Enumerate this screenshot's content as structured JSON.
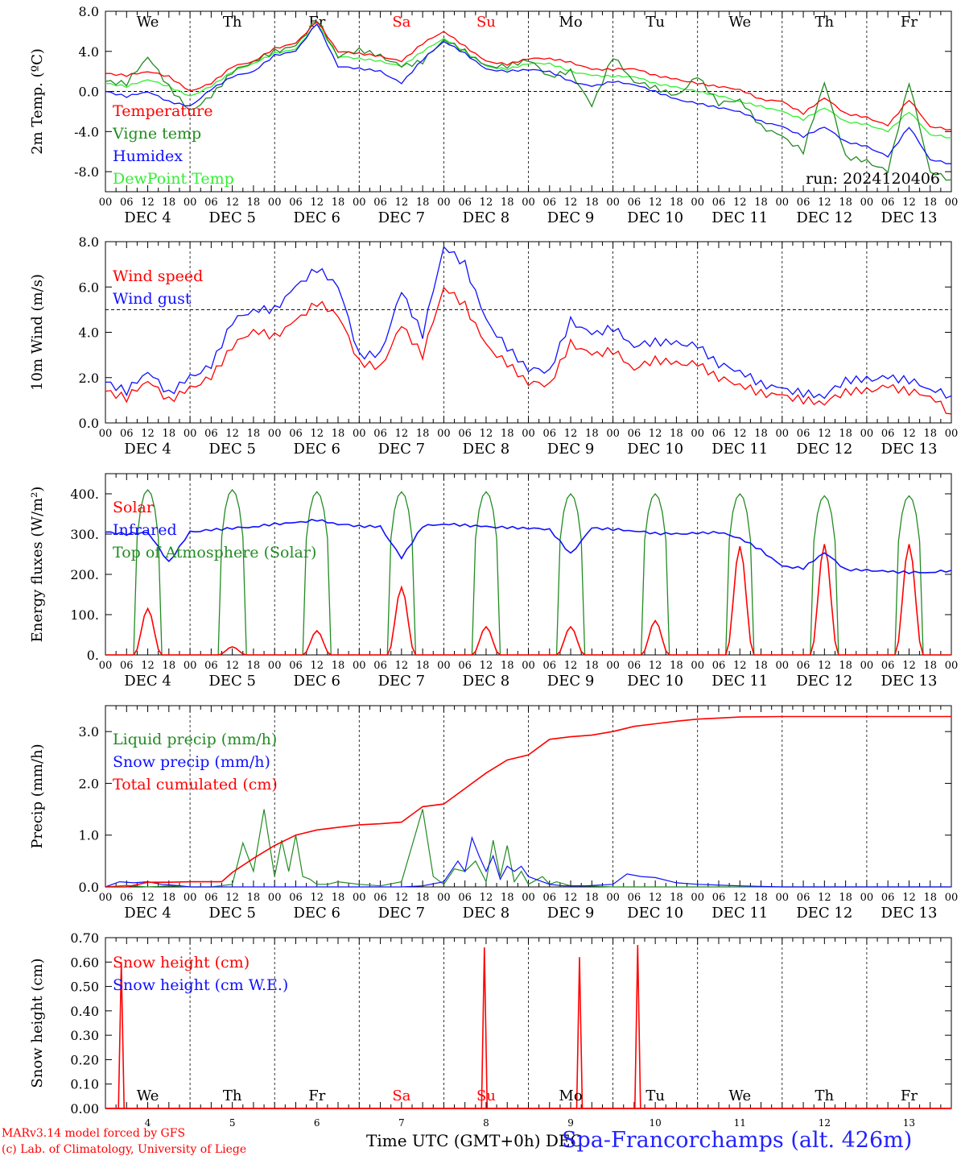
{
  "title": "Spa-Francorchamps (alt. 426m)",
  "run": "run: 2024120406",
  "credits": [
    "MARv3.14 model forced by GFS",
    "(c) Lab. of Climatology, University of Liege"
  ],
  "xaxis_title": "Time UTC (GMT+0h) DEC",
  "colors": {
    "red": "#ff0000",
    "green": "#228b22",
    "blue": "#1010ff",
    "lightgreen": "#33ee33",
    "weekend": "#ff0000"
  },
  "days": [
    "We",
    "Th",
    "Fr",
    "Sa",
    "Su",
    "Mo",
    "Tu",
    "We",
    "Th",
    "Fr"
  ],
  "weekend_days": [
    "Sa",
    "Su"
  ],
  "dates": [
    "DEC  4",
    "DEC  5",
    "DEC  6",
    "DEC  7",
    "DEC  8",
    "DEC  9",
    "DEC 10",
    "DEC 11",
    "DEC 12",
    "DEC 13"
  ],
  "day_numbers": [
    "4",
    "5",
    "6",
    "7",
    "8",
    "9",
    "10",
    "11",
    "12",
    "13"
  ],
  "hour_ticks": [
    "00",
    "06",
    "12",
    "18"
  ],
  "chart_data": [
    {
      "type": "line",
      "ylabel": "2m Temp. (ºC)",
      "ylim": [
        -10,
        8
      ],
      "yticks": [
        8.0,
        4.0,
        0.0,
        -4.0,
        -8.0
      ],
      "ytick_labels": [
        "8.0",
        "4.0",
        "0.0",
        "-4.0",
        "-8.0"
      ],
      "ref_line": 0,
      "x_hours": [
        0,
        6,
        12,
        18,
        24,
        30,
        36,
        42,
        48,
        54,
        60,
        66,
        72,
        78,
        84,
        90,
        96,
        102,
        108,
        114,
        120,
        126,
        132,
        138,
        144,
        150,
        156,
        162,
        168,
        174,
        180,
        186,
        192,
        198,
        204,
        210,
        216,
        222,
        228,
        234,
        240
      ],
      "series": [
        {
          "name": "Temperature",
          "color": "#ff0000",
          "values": [
            1.8,
            1.6,
            2.0,
            1.5,
            0.0,
            0.8,
            2.5,
            3.0,
            4.3,
            4.8,
            7.0,
            4.0,
            3.8,
            3.5,
            3.0,
            4.8,
            6.0,
            4.5,
            3.0,
            2.7,
            3.3,
            3.3,
            2.9,
            2.2,
            2.2,
            2.3,
            1.6,
            1.2,
            0.8,
            0.5,
            0.2,
            -0.8,
            -1.0,
            -2.2,
            -0.6,
            -2.2,
            -2.6,
            -3.4,
            -0.8,
            -3.5,
            -3.8
          ]
        },
        {
          "name": "Vigne temp",
          "color": "#228b22",
          "values": [
            1.0,
            0.8,
            3.5,
            0.5,
            -2.0,
            -0.5,
            2.0,
            3.0,
            4.0,
            4.5,
            7.2,
            3.5,
            4.2,
            3.5,
            2.5,
            3.0,
            5.2,
            4.0,
            2.5,
            2.5,
            3.2,
            1.5,
            2.0,
            -1.5,
            3.5,
            1.0,
            0.4,
            -0.5,
            1.5,
            -1.2,
            -0.8,
            -3.5,
            -4.5,
            -6.0,
            1.0,
            -6.5,
            -7.0,
            -8.0,
            1.0,
            -8.0,
            -8.8
          ]
        },
        {
          "name": "Humidex",
          "color": "#1010ff",
          "values": [
            0.0,
            -0.5,
            0.0,
            -1.0,
            -1.5,
            0.2,
            1.5,
            2.0,
            3.6,
            4.0,
            6.8,
            2.5,
            2.3,
            2.0,
            0.8,
            3.2,
            5.0,
            3.8,
            2.2,
            2.0,
            2.2,
            2.0,
            1.0,
            0.5,
            1.0,
            0.7,
            0.0,
            -0.8,
            -1.2,
            -1.6,
            -2.0,
            -3.0,
            -3.5,
            -4.5,
            -3.5,
            -5.0,
            -5.5,
            -6.5,
            -3.5,
            -6.8,
            -7.2
          ]
        },
        {
          "name": "DewPoint Temp",
          "color": "#33ee33",
          "values": [
            0.8,
            0.5,
            1.2,
            0.5,
            -0.5,
            0.5,
            2.0,
            2.8,
            3.8,
            4.2,
            6.8,
            3.5,
            3.3,
            3.0,
            2.5,
            4.0,
            5.3,
            4.0,
            2.5,
            2.2,
            2.8,
            2.8,
            2.0,
            1.6,
            1.5,
            1.5,
            0.8,
            0.4,
            0.0,
            -0.4,
            -1.0,
            -1.5,
            -2.0,
            -2.8,
            -1.6,
            -3.0,
            -3.3,
            -4.0,
            -2.0,
            -4.3,
            -4.6
          ]
        }
      ]
    },
    {
      "type": "line",
      "ylabel": "10m Wind (m/s)",
      "ylim": [
        0,
        8
      ],
      "yticks": [
        0.0,
        2.0,
        4.0,
        6.0,
        8.0
      ],
      "ytick_labels": [
        "0.0",
        "2.0",
        "4.0",
        "6.0",
        "8.0"
      ],
      "ref_line": 5,
      "x_hours": [
        0,
        6,
        12,
        18,
        24,
        30,
        36,
        42,
        48,
        54,
        60,
        66,
        72,
        78,
        84,
        90,
        96,
        102,
        108,
        114,
        120,
        126,
        132,
        138,
        144,
        150,
        156,
        162,
        168,
        174,
        180,
        186,
        192,
        198,
        204,
        210,
        216,
        222,
        228,
        234,
        240
      ],
      "series": [
        {
          "name": "Wind speed",
          "color": "#ff0000",
          "values": [
            1.4,
            1.1,
            1.9,
            1.0,
            1.5,
            2.0,
            3.4,
            4.1,
            3.8,
            4.5,
            5.3,
            4.8,
            2.7,
            2.4,
            4.3,
            3.0,
            6.0,
            5.2,
            3.4,
            2.6,
            1.8,
            1.7,
            3.5,
            3.0,
            3.2,
            2.4,
            2.8,
            2.6,
            2.6,
            2.0,
            1.7,
            1.3,
            1.2,
            1.0,
            0.9,
            1.4,
            1.4,
            1.6,
            1.4,
            1.2,
            0.4
          ]
        },
        {
          "name": "Wind gust",
          "color": "#1010ff",
          "values": [
            1.8,
            1.4,
            2.3,
            1.3,
            2.0,
            2.5,
            4.5,
            5.0,
            5.0,
            6.0,
            6.8,
            6.1,
            3.0,
            3.0,
            5.8,
            3.9,
            7.8,
            7.0,
            4.5,
            3.3,
            2.4,
            2.3,
            4.5,
            3.9,
            4.2,
            3.4,
            3.6,
            3.5,
            3.4,
            2.6,
            2.3,
            1.7,
            1.5,
            1.3,
            1.2,
            1.9,
            1.9,
            2.0,
            1.9,
            1.5,
            1.2
          ]
        }
      ]
    },
    {
      "type": "line",
      "ylabel": "Energy fluxes (W/m²)",
      "ylim": [
        0,
        450
      ],
      "yticks": [
        0,
        100,
        200,
        300,
        400
      ],
      "ytick_labels": [
        "0.",
        "100.",
        "200.",
        "300.",
        "400."
      ],
      "solar_noon_hour_of_day": 12,
      "series": [
        {
          "name": "Solar",
          "color": "#ff0000",
          "daily_peak": [
            115,
            20,
            60,
            168,
            70,
            70,
            85,
            270,
            275,
            275
          ]
        },
        {
          "name": "Infrared",
          "color": "#1010ff",
          "x_hours": [
            0,
            6,
            12,
            18,
            24,
            30,
            36,
            42,
            48,
            54,
            60,
            66,
            72,
            78,
            84,
            90,
            96,
            102,
            108,
            114,
            120,
            126,
            132,
            138,
            144,
            150,
            156,
            162,
            168,
            174,
            180,
            186,
            192,
            198,
            204,
            210,
            216,
            222,
            228,
            234,
            240
          ],
          "values": [
            305,
            300,
            305,
            230,
            305,
            310,
            315,
            318,
            325,
            328,
            335,
            325,
            320,
            318,
            240,
            320,
            325,
            322,
            318,
            316,
            315,
            312,
            250,
            315,
            312,
            308,
            302,
            300,
            302,
            305,
            290,
            260,
            220,
            215,
            255,
            212,
            210,
            207,
            205,
            205,
            210
          ]
        },
        {
          "name": "Top of Atmosphere (Solar)",
          "color": "#228b22",
          "daily_peak": [
            410,
            410,
            405,
            405,
            405,
            400,
            400,
            400,
            395,
            395
          ]
        }
      ]
    },
    {
      "type": "line",
      "ylabel": "Precip (mm/h)",
      "ylim": [
        0,
        3.5
      ],
      "yticks": [
        0.0,
        1.0,
        2.0,
        3.0
      ],
      "ytick_labels": [
        "0.0",
        "1.0",
        "2.0",
        "3.0"
      ],
      "series": [
        {
          "name": "Liquid precip (mm/h)",
          "color": "#228b22",
          "x_hours": [
            0,
            6,
            12,
            18,
            24,
            30,
            36,
            39,
            42,
            45,
            48,
            50,
            52,
            54,
            56,
            58,
            60,
            63,
            66,
            72,
            78,
            84,
            90,
            93,
            96,
            99,
            102,
            105,
            108,
            110,
            112,
            114,
            116,
            118,
            120,
            124,
            126,
            128,
            132,
            136,
            144,
            156,
            168,
            180,
            192,
            204,
            216,
            228,
            240
          ],
          "values": [
            0,
            0.03,
            0,
            0.02,
            0,
            0,
            0.05,
            0.85,
            0.3,
            1.5,
            0.2,
            0.9,
            0.3,
            1.0,
            0.2,
            0.15,
            0.05,
            0.05,
            0.1,
            0.05,
            0.02,
            0.1,
            1.5,
            0.2,
            0.05,
            0.35,
            0.3,
            0.5,
            0.1,
            0.9,
            0.2,
            0.8,
            0.1,
            0.3,
            0.05,
            0.2,
            0.05,
            0.1,
            0.02,
            0.02,
            0,
            0,
            0,
            0,
            0,
            0,
            0,
            0,
            0
          ]
        },
        {
          "name": "Snow precip (mm/h)",
          "color": "#1010ff",
          "x_hours": [
            0,
            4,
            8,
            12,
            16,
            20,
            24,
            36,
            48,
            72,
            84,
            90,
            96,
            100,
            102,
            104,
            106,
            108,
            110,
            112,
            114,
            116,
            118,
            120,
            122,
            124,
            126,
            130,
            136,
            144,
            148,
            152,
            156,
            162,
            168,
            180,
            192,
            240
          ],
          "values": [
            0,
            0.1,
            0.08,
            0.1,
            0.05,
            0.03,
            0,
            0,
            0,
            0,
            0,
            0.02,
            0.1,
            0.5,
            0.3,
            0.95,
            0.6,
            0.3,
            0.6,
            0.15,
            0.4,
            0.3,
            0.4,
            0.2,
            0.15,
            0.1,
            0.05,
            0.02,
            0.02,
            0.05,
            0.25,
            0.2,
            0.18,
            0.08,
            0.05,
            0.02,
            0,
            0
          ]
        },
        {
          "name": "Total cumulated (cm)",
          "color": "#ff0000",
          "x_hours": [
            0,
            6,
            12,
            18,
            24,
            30,
            33,
            36,
            42,
            48,
            54,
            60,
            66,
            72,
            78,
            84,
            90,
            96,
            102,
            108,
            114,
            120,
            126,
            132,
            138,
            144,
            150,
            156,
            162,
            168,
            174,
            180,
            192,
            204,
            216,
            228,
            240
          ],
          "values": [
            0,
            0,
            0.09,
            0.09,
            0.1,
            0.1,
            0.1,
            0.28,
            0.55,
            0.8,
            1.0,
            1.1,
            1.15,
            1.2,
            1.22,
            1.25,
            1.55,
            1.6,
            1.9,
            2.2,
            2.45,
            2.55,
            2.85,
            2.9,
            2.93,
            3.0,
            3.1,
            3.15,
            3.2,
            3.24,
            3.26,
            3.28,
            3.29,
            3.29,
            3.29,
            3.29,
            3.29
          ]
        }
      ]
    },
    {
      "type": "line",
      "ylabel": "Snow height (cm)",
      "ylim": [
        0,
        0.7
      ],
      "yticks": [
        0.0,
        0.1,
        0.2,
        0.3,
        0.4,
        0.5,
        0.6,
        0.7
      ],
      "ytick_labels": [
        "0.00",
        "0.10",
        "0.20",
        "0.30",
        "0.40",
        "0.50",
        "0.60",
        "0.70"
      ],
      "series": [
        {
          "name": "Snow height (cm)",
          "color": "#ff0000",
          "spikes": [
            {
              "x": 4.5,
              "y": 0.6
            },
            {
              "x": 107.5,
              "y": 0.66
            },
            {
              "x": 134.5,
              "y": 0.62
            },
            {
              "x": 151,
              "y": 0.67
            }
          ]
        },
        {
          "name": "Snow height (cm W.E.)",
          "color": "#1010ff",
          "spikes": []
        }
      ]
    }
  ]
}
